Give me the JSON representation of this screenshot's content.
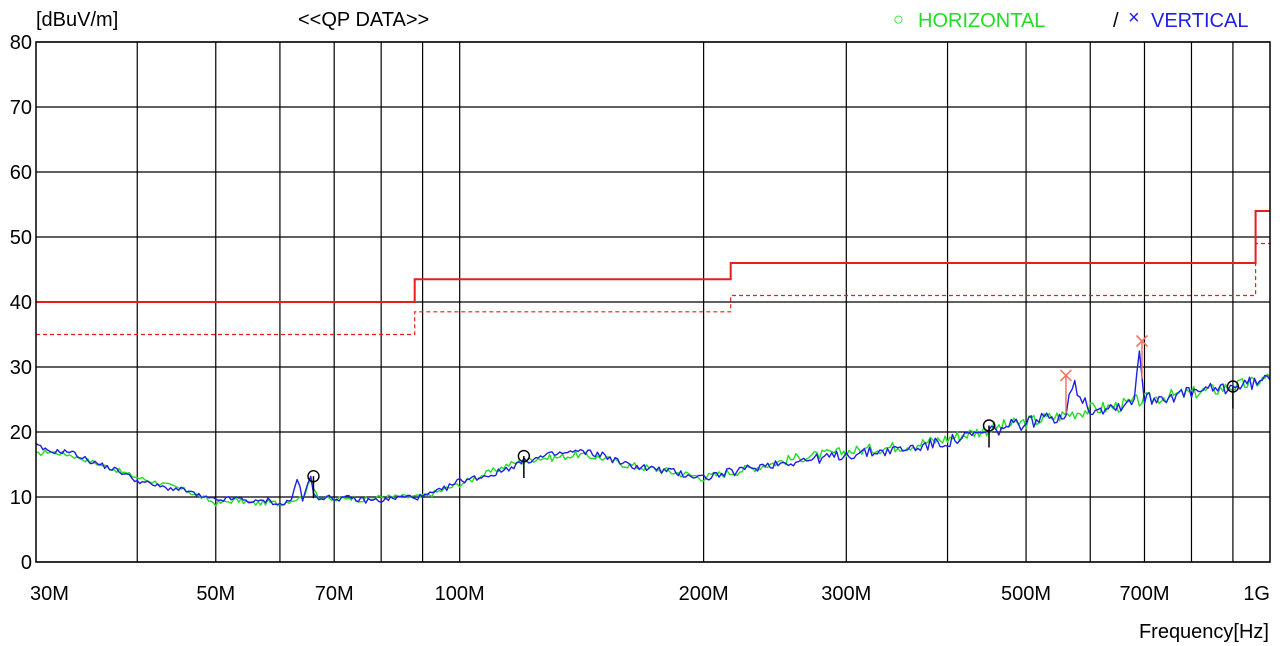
{
  "header": {
    "unit_label": "[dBuV/m]",
    "mode_label": "<<QP DATA>>",
    "legend_horizontal_symbol": "○",
    "legend_horizontal_label": "HORIZONTAL",
    "legend_separator": "/",
    "legend_vertical_symbol": "×",
    "legend_vertical_label": "VERTICAL"
  },
  "colors": {
    "horizontal": "#22dd22",
    "vertical": "#1f1fe6",
    "limit": "#e61e1e",
    "marker_vertical": "#f07860",
    "grid": "#000000"
  },
  "chart_data": {
    "type": "line",
    "xlabel": "Frequency[Hz]",
    "ylabel": "[dBuV/m]",
    "x_scale": "log",
    "xlim": [
      30,
      1000
    ],
    "ylim": [
      0,
      80
    ],
    "grid": true,
    "legend_position": "top-right",
    "x_ticks": [
      {
        "value": 30,
        "label": "30M"
      },
      {
        "value": 50,
        "label": "50M"
      },
      {
        "value": 70,
        "label": "70M"
      },
      {
        "value": 100,
        "label": "100M"
      },
      {
        "value": 200,
        "label": "200M"
      },
      {
        "value": 300,
        "label": "300M"
      },
      {
        "value": 500,
        "label": "500M"
      },
      {
        "value": 700,
        "label": "700M"
      },
      {
        "value": 1000,
        "label": "1G"
      }
    ],
    "x_gridlines": [
      40,
      50,
      60,
      70,
      80,
      90,
      100,
      200,
      300,
      400,
      500,
      600,
      700,
      800,
      900
    ],
    "y_ticks": [
      0,
      10,
      20,
      30,
      40,
      50,
      60,
      70,
      80
    ],
    "limit_lines": [
      {
        "name": "limit",
        "style": "solid",
        "points": [
          [
            30,
            40
          ],
          [
            88,
            40
          ],
          [
            88,
            43.5
          ],
          [
            216,
            43.5
          ],
          [
            216,
            46
          ],
          [
            960,
            46
          ],
          [
            960,
            54
          ],
          [
            1000,
            54
          ]
        ]
      },
      {
        "name": "margin",
        "style": "dashed",
        "points": [
          [
            30,
            35
          ],
          [
            88,
            35
          ],
          [
            88,
            38.5
          ],
          [
            216,
            38.5
          ],
          [
            216,
            41
          ],
          [
            960,
            41
          ],
          [
            960,
            49
          ],
          [
            1000,
            49
          ]
        ]
      }
    ],
    "series": [
      {
        "name": "HORIZONTAL",
        "x": [
          30,
          31,
          33,
          35,
          38,
          40,
          43,
          46,
          48,
          50,
          53,
          56,
          58,
          60,
          62,
          64,
          65.5,
          67,
          70,
          73,
          76,
          80,
          85,
          90,
          95,
          100,
          105,
          110,
          115,
          120,
          125,
          130,
          140,
          150,
          160,
          170,
          180,
          190,
          200,
          220,
          240,
          260,
          280,
          300,
          330,
          360,
          400,
          450,
          500,
          550,
          600,
          650,
          700,
          750,
          800,
          850,
          900,
          950,
          1000
        ],
        "values": [
          16.5,
          17,
          16.5,
          15.5,
          14,
          13,
          12,
          11,
          10,
          9,
          9.5,
          9,
          9.2,
          9,
          9.5,
          10,
          12.5,
          10,
          9.5,
          10,
          9.5,
          10,
          10,
          10,
          11,
          12,
          13,
          14,
          15,
          15.5,
          16,
          16,
          16.5,
          16,
          15,
          14.5,
          14,
          13.5,
          13,
          14,
          15,
          16,
          16.5,
          17,
          17.5,
          18,
          19,
          20.5,
          21.5,
          22.5,
          23.5,
          24,
          25,
          25.5,
          26,
          26.5,
          27,
          27.5,
          28.5
        ]
      },
      {
        "name": "VERTICAL",
        "x": [
          30,
          31,
          33,
          35,
          38,
          40,
          43,
          46,
          48,
          50,
          53,
          56,
          58,
          60,
          62,
          63,
          64,
          65,
          65.5,
          66,
          67,
          70,
          73,
          76,
          80,
          85,
          90,
          95,
          100,
          105,
          110,
          115,
          120,
          125,
          130,
          140,
          150,
          160,
          170,
          180,
          190,
          200,
          220,
          240,
          260,
          280,
          300,
          330,
          360,
          400,
          450,
          500,
          550,
          560,
          570,
          600,
          650,
          680,
          690,
          700,
          750,
          800,
          850,
          900,
          950,
          1000
        ],
        "values": [
          18,
          17,
          17,
          15.5,
          14,
          12.5,
          11.5,
          11,
          10,
          9.5,
          9.8,
          9.2,
          9.5,
          8.8,
          9.5,
          13,
          9.5,
          12,
          13,
          10.5,
          10,
          9.8,
          9.8,
          9.5,
          9.5,
          10,
          10,
          11,
          12.5,
          13,
          13.5,
          14.5,
          15.5,
          16,
          16.5,
          17,
          16.5,
          15,
          14.5,
          14,
          13.5,
          13,
          14,
          15,
          15.5,
          16,
          16.5,
          17,
          17.5,
          18.5,
          20,
          21.5,
          22.5,
          23,
          27.5,
          23.5,
          24,
          25,
          33,
          25,
          25.5,
          26,
          26.5,
          27,
          27.5,
          28
        ]
      }
    ],
    "markers": [
      {
        "series": "HORIZONTAL",
        "symbol": "circle",
        "x": 66,
        "y": 13.2
      },
      {
        "series": "HORIZONTAL",
        "symbol": "circle",
        "x": 120,
        "y": 16.3
      },
      {
        "series": "HORIZONTAL",
        "symbol": "circle",
        "x": 450,
        "y": 21
      },
      {
        "series": "HORIZONTAL",
        "symbol": "circle",
        "x": 900,
        "y": 27
      },
      {
        "series": "VERTICAL",
        "symbol": "cross",
        "x": 560,
        "y": 28.7
      },
      {
        "series": "VERTICAL",
        "symbol": "cross",
        "x": 695,
        "y": 34
      }
    ]
  }
}
